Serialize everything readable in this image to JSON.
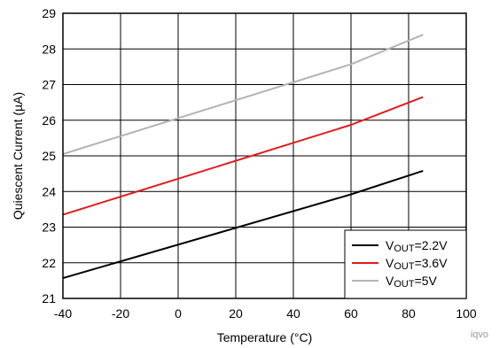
{
  "chart_data": {
    "type": "line",
    "title": "",
    "xlabel": "Temperature (°C)",
    "ylabel": "Quiescent Current (µA)",
    "xlim": [
      -40,
      100
    ],
    "ylim": [
      21,
      29
    ],
    "x_ticks": [
      -40,
      -20,
      0,
      20,
      40,
      60,
      80,
      100
    ],
    "y_ticks": [
      21,
      22,
      23,
      24,
      25,
      26,
      27,
      28,
      29
    ],
    "grid": true,
    "legend_position": "bottom-right",
    "series": [
      {
        "name": "VOUT=2.2V",
        "name_main": "V",
        "name_sub": "OUT",
        "name_rest": "=2.2V",
        "color": "#000000",
        "x": [
          -40,
          60,
          85
        ],
        "y": [
          21.57,
          23.92,
          24.58
        ]
      },
      {
        "name": "VOUT=3.6V",
        "name_main": "V",
        "name_sub": "OUT",
        "name_rest": "=3.6V",
        "color": "#e31a1c",
        "x": [
          -40,
          60,
          85
        ],
        "y": [
          23.35,
          25.87,
          26.65
        ]
      },
      {
        "name": "VOUT=5V",
        "name_main": "V",
        "name_sub": "OUT",
        "name_rest": "=5V",
        "color": "#b4b4b4",
        "x": [
          -40,
          60,
          85
        ],
        "y": [
          25.05,
          27.57,
          28.4
        ]
      }
    ]
  },
  "watermark": "iqvo"
}
